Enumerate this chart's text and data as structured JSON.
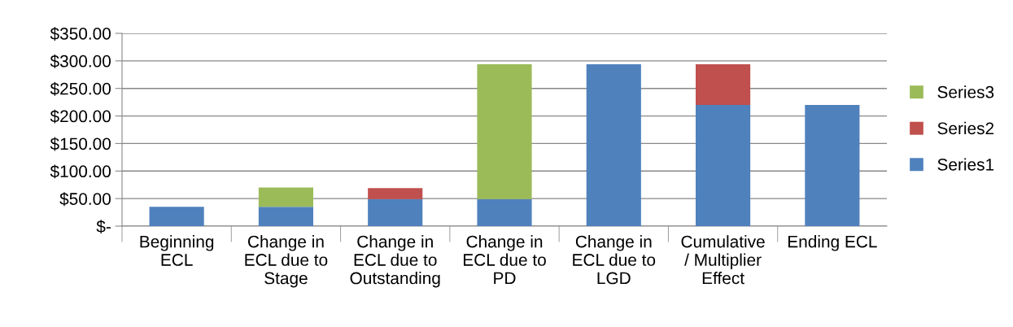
{
  "chart_data": {
    "type": "bar",
    "stacked": true,
    "categories": [
      "Beginning\nECL",
      "Change in\nECL due to\nStage",
      "Change in\nECL due to\nOutstanding",
      "Change in\nECL due to\nPD",
      "Change in\nECL due to\nLGD",
      "Cumulative\n/ Multiplier\nEffect",
      "Ending ECL"
    ],
    "series": [
      {
        "name": "Series1",
        "color": "#4f81bd",
        "values": [
          35,
          35,
          49,
          49,
          294,
          220,
          220
        ]
      },
      {
        "name": "Series2",
        "color": "#c0504d",
        "values": [
          null,
          null,
          20,
          null,
          null,
          74,
          null
        ]
      },
      {
        "name": "Series3",
        "color": "#9bbb59",
        "values": [
          null,
          35,
          null,
          245,
          null,
          null,
          null
        ]
      }
    ],
    "ylim": [
      0,
      350
    ],
    "yticks": [
      {
        "value": 0,
        "label": "$-"
      },
      {
        "value": 50,
        "label": "$50.00"
      },
      {
        "value": 100,
        "label": "$100.00"
      },
      {
        "value": 150,
        "label": "$150.00"
      },
      {
        "value": 200,
        "label": "$200.00"
      },
      {
        "value": 250,
        "label": "$250.00"
      },
      {
        "value": 300,
        "label": "$300.00"
      },
      {
        "value": 350,
        "label": "$350.00"
      }
    ],
    "grid": "y",
    "legend": "right"
  }
}
